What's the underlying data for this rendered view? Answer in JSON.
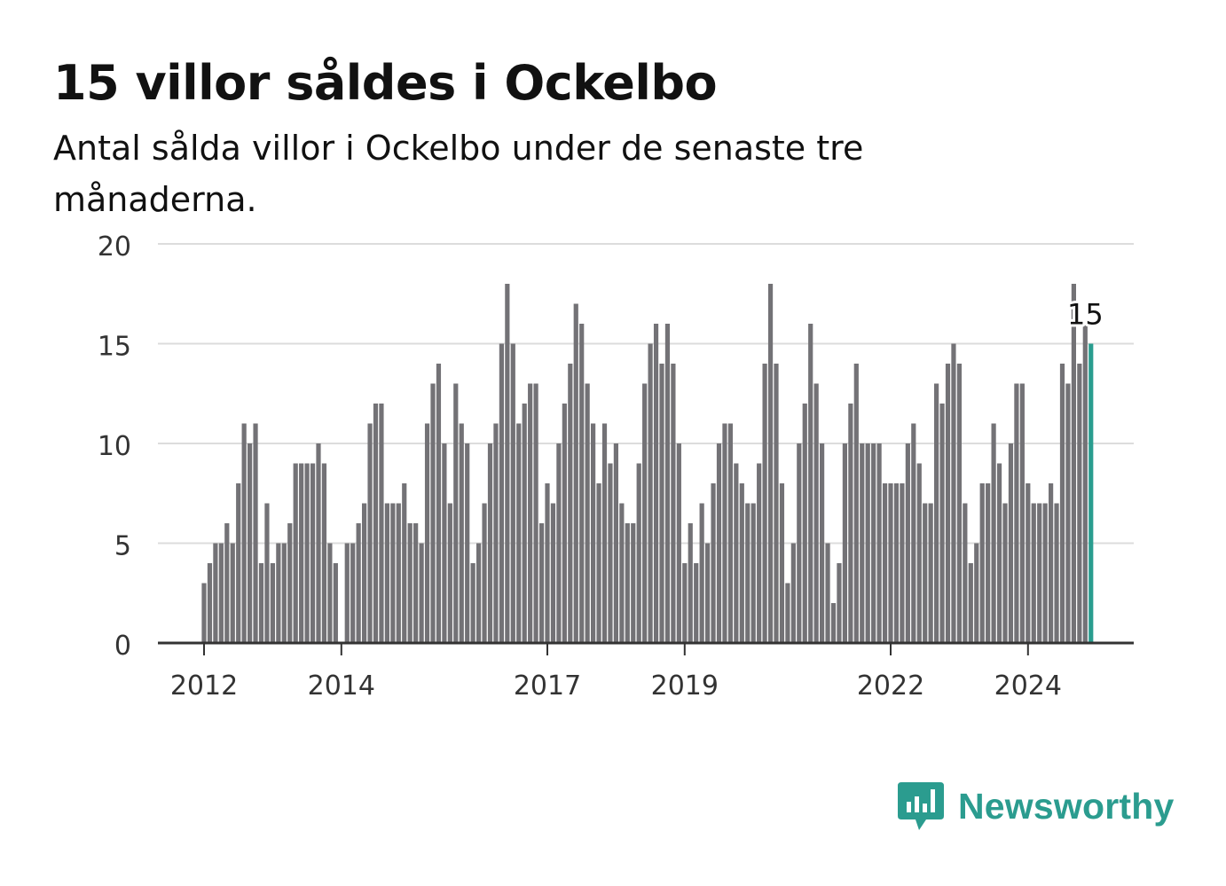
{
  "header": {
    "title": "15 villor såldes i Ockelbo",
    "subtitle": "Antal sålda villor i Ockelbo under de senaste tre månaderna."
  },
  "brand": {
    "name": "Newsworthy",
    "icon": "newsworthy-logo-icon",
    "color": "#2b9c8f"
  },
  "colors": {
    "bar": "#737276",
    "highlight": "#2a9d8f",
    "grid": "#dcdcdc",
    "axis": "#333333"
  },
  "chart_data": {
    "type": "bar",
    "title": "15 villor såldes i Ockelbo",
    "subtitle": "Antal sålda villor i Ockelbo under de senaste tre månaderna.",
    "ylim": [
      0,
      20
    ],
    "yticks": [
      0,
      5,
      10,
      15,
      20
    ],
    "xticks": [
      "2012",
      "2014",
      "2017",
      "2019",
      "2022",
      "2024"
    ],
    "grid": true,
    "first_period": "2012-01",
    "period": "month",
    "values": [
      3,
      4,
      5,
      5,
      6,
      5,
      8,
      11,
      10,
      11,
      4,
      7,
      4,
      5,
      5,
      6,
      9,
      9,
      9,
      9,
      10,
      9,
      5,
      4,
      0,
      5,
      5,
      6,
      7,
      11,
      12,
      12,
      7,
      7,
      7,
      8,
      6,
      6,
      5,
      11,
      13,
      14,
      10,
      7,
      13,
      11,
      10,
      4,
      5,
      7,
      10,
      11,
      15,
      18,
      15,
      11,
      12,
      13,
      13,
      6,
      8,
      7,
      10,
      12,
      14,
      17,
      16,
      13,
      11,
      8,
      11,
      9,
      10,
      7,
      6,
      6,
      9,
      13,
      15,
      16,
      14,
      16,
      14,
      10,
      4,
      6,
      4,
      7,
      5,
      8,
      10,
      11,
      11,
      9,
      8,
      7,
      7,
      9,
      14,
      18,
      14,
      8,
      3,
      5,
      10,
      12,
      16,
      13,
      10,
      5,
      2,
      4,
      10,
      12,
      14,
      10,
      10,
      10,
      10,
      8,
      8,
      8,
      8,
      10,
      11,
      9,
      7,
      7,
      13,
      12,
      14,
      15,
      14,
      7,
      4,
      5,
      8,
      8,
      11,
      9,
      7,
      10,
      13,
      13,
      8,
      7,
      7,
      7,
      8,
      7,
      14,
      13,
      18,
      14,
      16,
      15
    ],
    "highlight_label": "15"
  }
}
